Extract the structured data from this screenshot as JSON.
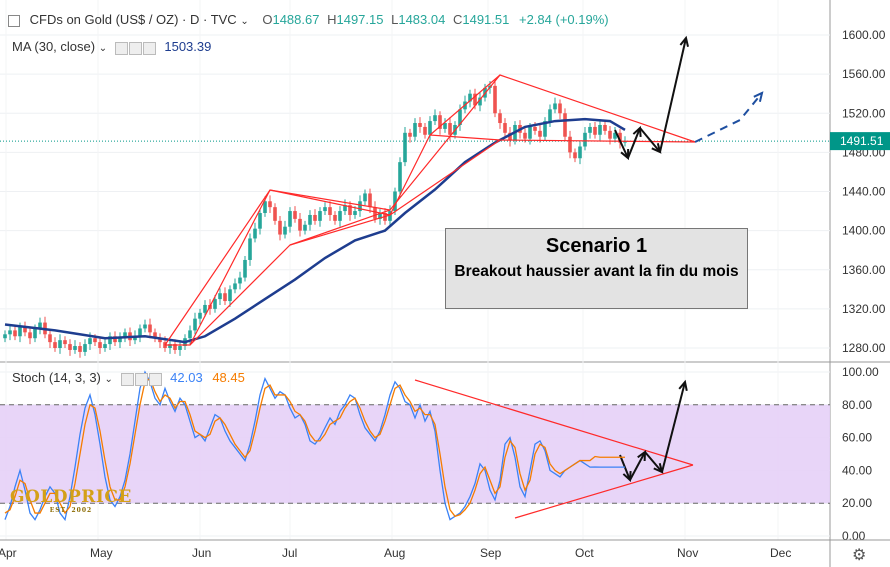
{
  "header": {
    "symbol": "CFDs on Gold (US$ / OZ) · D · TVC",
    "ohlc": [
      {
        "label": "O",
        "value": "1488.67"
      },
      {
        "label": "H",
        "value": "1497.15"
      },
      {
        "label": "L",
        "value": "1483.04"
      },
      {
        "label": "C",
        "value": "1491.51"
      }
    ],
    "change": "+2.84 (+0.19%)",
    "ma_label": "MA (30, close)",
    "ma_value": "1503.39",
    "stoch_label": "Stoch (14, 3, 3)",
    "stoch_k": "42.03",
    "stoch_d": "48.45"
  },
  "annotation": {
    "title": "Scenario 1",
    "text": "Breakout haussier avant la fin du mois"
  },
  "logo": {
    "name": "GOLDPRICE",
    "sub": "EST. 2002"
  },
  "colors": {
    "up": "#26a69a",
    "down": "#ef5350",
    "ma": "#1e3d8f",
    "stoch_k": "#3b82f6",
    "stoch_d": "#f57c00",
    "stoch_bg": "#e6d0f7",
    "trend": "#ff2a2a",
    "price_line": "#009688"
  },
  "chart_data": [
    {
      "type": "candlestick",
      "title": "CFDs on Gold (US$ / OZ)",
      "ylim": [
        1260,
        1620
      ],
      "y_ticks": [
        1280,
        1320,
        1360,
        1400,
        1440,
        1480,
        1520,
        1560,
        1600
      ],
      "last_price": "1491.51",
      "x_labels": [
        "Apr",
        "May",
        "Jun",
        "Jul",
        "Aug",
        "Sep",
        "Oct",
        "Nov",
        "Dec"
      ],
      "candles": [
        {
          "c": 1294
        },
        {
          "c": 1298
        },
        {
          "c": 1292
        },
        {
          "c": 1302
        },
        {
          "c": 1296
        },
        {
          "c": 1290
        },
        {
          "c": 1300
        },
        {
          "c": 1306
        },
        {
          "c": 1294
        },
        {
          "c": 1286
        },
        {
          "c": 1280
        },
        {
          "c": 1288
        },
        {
          "c": 1284
        },
        {
          "c": 1278
        },
        {
          "c": 1282
        },
        {
          "c": 1276
        },
        {
          "c": 1284
        },
        {
          "c": 1290
        },
        {
          "c": 1286
        },
        {
          "c": 1280
        },
        {
          "c": 1284
        },
        {
          "c": 1292
        },
        {
          "c": 1286
        },
        {
          "c": 1290
        },
        {
          "c": 1296
        },
        {
          "c": 1288
        },
        {
          "c": 1292
        },
        {
          "c": 1300
        },
        {
          "c": 1304
        },
        {
          "c": 1296
        },
        {
          "c": 1290
        },
        {
          "c": 1286
        },
        {
          "c": 1280
        },
        {
          "c": 1284
        },
        {
          "c": 1278
        },
        {
          "c": 1282
        },
        {
          "c": 1290
        },
        {
          "c": 1298
        },
        {
          "c": 1310
        },
        {
          "c": 1316
        },
        {
          "c": 1324
        },
        {
          "c": 1320
        },
        {
          "c": 1330
        },
        {
          "c": 1336
        },
        {
          "c": 1328
        },
        {
          "c": 1340
        },
        {
          "c": 1346
        },
        {
          "c": 1352
        },
        {
          "c": 1370
        },
        {
          "c": 1392
        },
        {
          "c": 1402
        },
        {
          "c": 1418
        },
        {
          "c": 1430
        },
        {
          "c": 1424
        },
        {
          "c": 1410
        },
        {
          "c": 1396
        },
        {
          "c": 1404
        },
        {
          "c": 1420
        },
        {
          "c": 1412
        },
        {
          "c": 1400
        },
        {
          "c": 1406
        },
        {
          "c": 1416
        },
        {
          "c": 1410
        },
        {
          "c": 1420
        },
        {
          "c": 1424
        },
        {
          "c": 1416
        },
        {
          "c": 1410
        },
        {
          "c": 1420
        },
        {
          "c": 1426
        },
        {
          "c": 1416
        },
        {
          "c": 1420
        },
        {
          "c": 1430
        },
        {
          "c": 1438
        },
        {
          "c": 1424
        },
        {
          "c": 1412
        },
        {
          "c": 1418
        },
        {
          "c": 1410
        },
        {
          "c": 1420
        },
        {
          "c": 1440
        },
        {
          "c": 1470
        },
        {
          "c": 1500
        },
        {
          "c": 1496
        },
        {
          "c": 1510
        },
        {
          "c": 1506
        },
        {
          "c": 1498
        },
        {
          "c": 1512
        },
        {
          "c": 1518
        },
        {
          "c": 1504
        },
        {
          "c": 1510
        },
        {
          "c": 1498
        },
        {
          "c": 1508
        },
        {
          "c": 1524
        },
        {
          "c": 1532
        },
        {
          "c": 1540
        },
        {
          "c": 1528
        },
        {
          "c": 1536
        },
        {
          "c": 1546
        },
        {
          "c": 1548
        },
        {
          "c": 1520
        },
        {
          "c": 1510
        },
        {
          "c": 1500
        },
        {
          "c": 1492
        },
        {
          "c": 1508
        },
        {
          "c": 1500
        },
        {
          "c": 1494
        },
        {
          "c": 1506
        },
        {
          "c": 1502
        },
        {
          "c": 1496
        },
        {
          "c": 1512
        },
        {
          "c": 1524
        },
        {
          "c": 1530
        },
        {
          "c": 1520
        },
        {
          "c": 1496
        },
        {
          "c": 1480
        },
        {
          "c": 1474
        },
        {
          "c": 1486
        },
        {
          "c": 1500
        },
        {
          "c": 1506
        },
        {
          "c": 1498
        },
        {
          "c": 1508
        },
        {
          "c": 1502
        },
        {
          "c": 1494
        },
        {
          "c": 1500
        },
        {
          "c": 1490
        },
        {
          "c": 1491.5
        }
      ],
      "ma30": [
        {
          "i": 0,
          "v": 1304
        },
        {
          "i": 10,
          "v": 1298
        },
        {
          "i": 20,
          "v": 1290
        },
        {
          "i": 28,
          "v": 1292
        },
        {
          "i": 36,
          "v": 1286
        },
        {
          "i": 40,
          "v": 1292
        },
        {
          "i": 46,
          "v": 1310
        },
        {
          "i": 52,
          "v": 1330
        },
        {
          "i": 58,
          "v": 1350
        },
        {
          "i": 64,
          "v": 1372
        },
        {
          "i": 70,
          "v": 1390
        },
        {
          "i": 76,
          "v": 1400
        },
        {
          "i": 80,
          "v": 1418
        },
        {
          "i": 86,
          "v": 1442
        },
        {
          "i": 92,
          "v": 1470
        },
        {
          "i": 98,
          "v": 1490
        },
        {
          "i": 104,
          "v": 1506
        },
        {
          "i": 110,
          "v": 1512
        },
        {
          "i": 116,
          "v": 1514
        },
        {
          "i": 121,
          "v": 1512
        },
        {
          "i": 124,
          "v": 1503
        }
      ]
    },
    {
      "type": "line",
      "title": "Stoch (14, 3, 3)",
      "ylim": [
        0,
        100
      ],
      "y_ticks": [
        0,
        20,
        40,
        60,
        80,
        100
      ],
      "bands": [
        20,
        80
      ],
      "series": [
        {
          "name": "%K",
          "values": [
            10,
            18,
            30,
            40,
            28,
            14,
            10,
            16,
            24,
            30,
            26,
            14,
            10,
            24,
            42,
            62,
            78,
            86,
            74,
            56,
            36,
            22,
            18,
            24,
            34,
            50,
            70,
            90,
            100,
            94,
            84,
            80,
            90,
            82,
            76,
            84,
            80,
            70,
            60,
            62,
            58,
            66,
            74,
            72,
            64,
            58,
            54,
            50,
            46,
            56,
            70,
            86,
            96,
            90,
            84,
            88,
            86,
            78,
            72,
            74,
            68,
            58,
            56,
            60,
            66,
            72,
            68,
            76,
            80,
            86,
            84,
            74,
            66,
            62,
            58,
            64,
            74,
            86,
            94,
            90,
            82,
            80,
            72,
            80,
            70,
            76,
            64,
            40,
            20,
            10,
            12,
            14,
            18,
            24,
            32,
            44,
            40,
            28,
            22,
            34,
            56,
            60,
            48,
            30,
            24,
            40,
            56,
            58,
            52,
            40,
            38,
            36,
            40,
            42,
            44,
            46,
            44,
            42,
            42.03,
            42,
            42,
            42,
            42,
            42,
            42
          ]
        },
        {
          "name": "%D",
          "values": [
            14,
            16,
            24,
            34,
            32,
            22,
            14,
            14,
            20,
            26,
            26,
            20,
            14,
            18,
            32,
            50,
            68,
            80,
            78,
            64,
            46,
            30,
            22,
            22,
            30,
            44,
            62,
            80,
            94,
            96,
            88,
            82,
            86,
            84,
            78,
            82,
            82,
            74,
            64,
            62,
            60,
            62,
            70,
            72,
            68,
            62,
            56,
            52,
            48,
            52,
            64,
            78,
            90,
            92,
            86,
            86,
            86,
            82,
            76,
            74,
            70,
            62,
            58,
            58,
            62,
            68,
            70,
            72,
            78,
            82,
            84,
            78,
            70,
            64,
            60,
            62,
            70,
            80,
            90,
            92,
            86,
            82,
            76,
            78,
            74,
            74,
            68,
            50,
            30,
            16,
            12,
            13,
            16,
            20,
            28,
            38,
            42,
            34,
            26,
            30,
            48,
            58,
            54,
            38,
            28,
            34,
            50,
            56,
            54,
            44,
            40,
            38,
            40,
            42,
            44,
            46,
            46,
            46,
            48.45,
            48,
            48,
            48,
            48,
            48,
            48
          ]
        }
      ],
      "last": {
        "k": "42.03",
        "d": "48.45"
      }
    }
  ]
}
